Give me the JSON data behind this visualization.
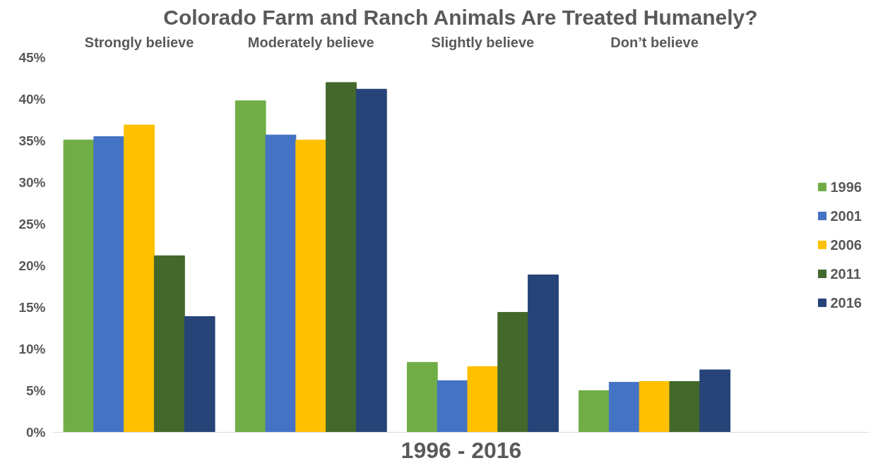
{
  "chart_data": {
    "type": "bar",
    "title": "Colorado Farm and Ranch Animals Are Treated Humanely?",
    "xlabel": "1996 - 2016",
    "categories": [
      "Strongly believe",
      "Moderately believe",
      "Slightly believe",
      "Don’t believe"
    ],
    "series": [
      {
        "name": "1996",
        "color": "#70ad47",
        "values": [
          35.1,
          39.8,
          8.4,
          5.0
        ]
      },
      {
        "name": "2001",
        "color": "#4472c4",
        "values": [
          35.5,
          35.7,
          6.2,
          6.0
        ]
      },
      {
        "name": "2006",
        "color": "#ffc000",
        "values": [
          36.9,
          35.1,
          7.9,
          6.1
        ]
      },
      {
        "name": "2011",
        "color": "#43682b",
        "values": [
          21.2,
          42.0,
          14.4,
          6.1
        ]
      },
      {
        "name": "2016",
        "color": "#264478",
        "values": [
          13.9,
          41.2,
          18.9,
          7.5
        ]
      }
    ],
    "ylim": [
      0,
      45
    ],
    "yticks": [
      {
        "value": 0,
        "label": "0%"
      },
      {
        "value": 5,
        "label": "5%"
      },
      {
        "value": 10,
        "label": "10%"
      },
      {
        "value": 15,
        "label": "15%"
      },
      {
        "value": 20,
        "label": "20%"
      },
      {
        "value": 25,
        "label": "25%"
      },
      {
        "value": 30,
        "label": "30%"
      },
      {
        "value": 35,
        "label": "35%"
      },
      {
        "value": 40,
        "label": "40%"
      },
      {
        "value": 45,
        "label": "45%"
      }
    ],
    "grid": false,
    "legend": "right"
  }
}
